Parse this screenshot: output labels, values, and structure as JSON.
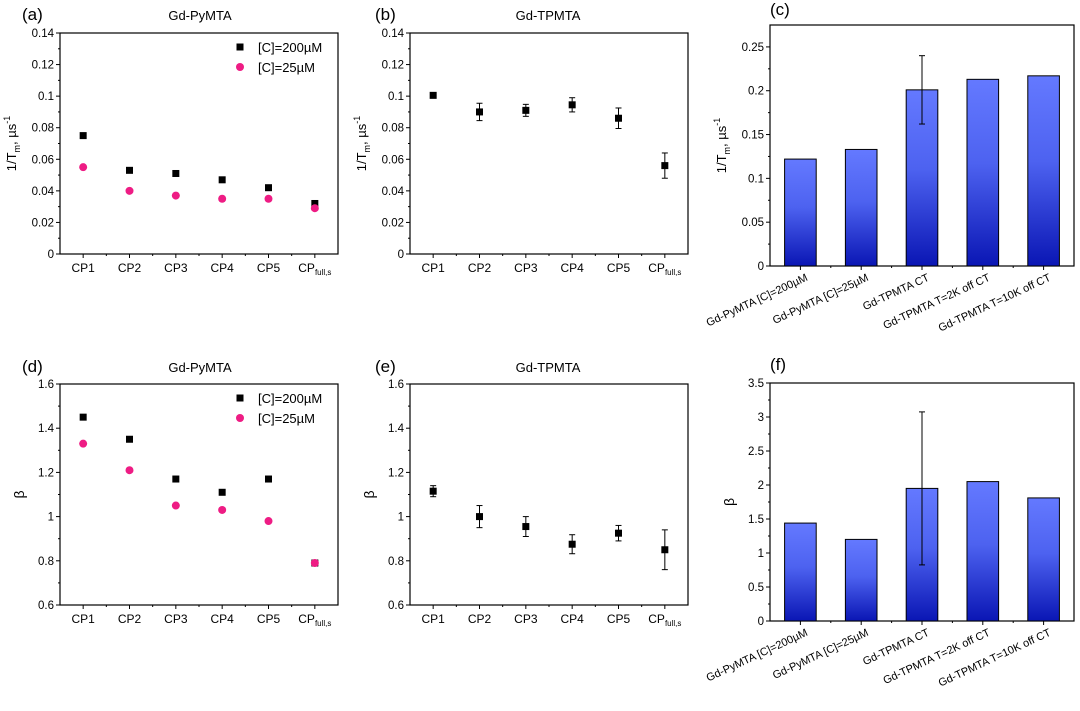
{
  "figure": {
    "colors": {
      "series_200uM": "#000000",
      "series_25uM": "#ee1c84",
      "bar_top": "#6479ff",
      "bar_bottom": "#0a16b4",
      "axis": "#000000"
    }
  },
  "chart_data": [
    {
      "panel": "(a)",
      "type": "scatter",
      "title": "Gd-PyMTA",
      "xlabel": "",
      "ylabel": "1/T_m, µs^-1",
      "ylabel_parts": {
        "main": "1/T",
        "sub": "m",
        "unit": ", µs",
        "sup": "-1"
      },
      "categories": [
        "CP1",
        "CP2",
        "CP3",
        "CP4",
        "CP5",
        "CPfull,s"
      ],
      "category_labels": [
        {
          "main": "CP1",
          "sub": ""
        },
        {
          "main": "CP2",
          "sub": ""
        },
        {
          "main": "CP3",
          "sub": ""
        },
        {
          "main": "CP4",
          "sub": ""
        },
        {
          "main": "CP5",
          "sub": ""
        },
        {
          "main": "CP",
          "sub": "full,s"
        }
      ],
      "ylim": [
        0,
        0.14
      ],
      "yticks": [
        0,
        0.02,
        0.04,
        0.06,
        0.08,
        0.1,
        0.12,
        0.14
      ],
      "ytick_labels": [
        "0",
        "0.02",
        "0.04",
        "0.06",
        "0.08",
        "0.1",
        "0.12",
        "0.14"
      ],
      "legend": "top-right",
      "series": [
        {
          "name": "[C]=200µM",
          "marker": "square",
          "color": "#000000",
          "values": [
            0.075,
            0.053,
            0.051,
            0.047,
            0.042,
            0.032
          ]
        },
        {
          "name": "[C]=25µM",
          "marker": "circle",
          "color": "#ee1c84",
          "values": [
            0.055,
            0.04,
            0.037,
            0.035,
            0.035,
            0.029
          ]
        }
      ]
    },
    {
      "panel": "(b)",
      "type": "scatter",
      "title": "Gd-TPMTA",
      "xlabel": "",
      "ylabel": "1/T_m, µs^-1",
      "ylabel_parts": {
        "main": "1/T",
        "sub": "m",
        "unit": ", µs",
        "sup": "-1"
      },
      "categories": [
        "CP1",
        "CP2",
        "CP3",
        "CP4",
        "CP5",
        "CPfull,s"
      ],
      "category_labels": [
        {
          "main": "CP1",
          "sub": ""
        },
        {
          "main": "CP2",
          "sub": ""
        },
        {
          "main": "CP3",
          "sub": ""
        },
        {
          "main": "CP4",
          "sub": ""
        },
        {
          "main": "CP5",
          "sub": ""
        },
        {
          "main": "CP",
          "sub": "full,s"
        }
      ],
      "ylim": [
        0,
        0.14
      ],
      "yticks": [
        0,
        0.02,
        0.04,
        0.06,
        0.08,
        0.1,
        0.12,
        0.14
      ],
      "ytick_labels": [
        "0",
        "0.02",
        "0.04",
        "0.06",
        "0.08",
        "0.1",
        "0.12",
        "0.14"
      ],
      "legend": "none",
      "series": [
        {
          "name": "Gd-TPMTA",
          "marker": "square",
          "color": "#000000",
          "values": [
            0.1005,
            0.09,
            0.091,
            0.0945,
            0.086,
            0.056
          ],
          "errors": [
            0.001,
            0.0055,
            0.0038,
            0.0045,
            0.0065,
            0.008
          ]
        }
      ]
    },
    {
      "panel": "(c)",
      "type": "bar",
      "title": "",
      "xlabel": "",
      "ylabel": "1/T_m, µs^-1",
      "ylabel_parts": {
        "main": "1/T",
        "sub": "m",
        "unit": ", µs",
        "sup": "-1"
      },
      "categories": [
        "Gd-PyMTA [C]=200µM",
        "Gd-PyMTA [C]=25µM",
        "Gd-TPMTA CT",
        "Gd-TPMTA T=2K off CT",
        "Gd-TPMTA T=10K off CT"
      ],
      "ylim": [
        0,
        0.275
      ],
      "yticks": [
        0,
        0.05,
        0.1,
        0.15,
        0.2,
        0.25
      ],
      "ytick_labels": [
        "0",
        "0.05",
        "0.1",
        "0.15",
        "0.2",
        "0.25"
      ],
      "legend": "none",
      "values": [
        0.122,
        0.133,
        0.201,
        0.213,
        0.217
      ],
      "errors": [
        null,
        null,
        0.039,
        null,
        null
      ]
    },
    {
      "panel": "(d)",
      "type": "scatter",
      "title": "Gd-PyMTA",
      "xlabel": "",
      "ylabel": "β",
      "categories": [
        "CP1",
        "CP2",
        "CP3",
        "CP4",
        "CP5",
        "CPfull,s"
      ],
      "category_labels": [
        {
          "main": "CP1",
          "sub": ""
        },
        {
          "main": "CP2",
          "sub": ""
        },
        {
          "main": "CP3",
          "sub": ""
        },
        {
          "main": "CP4",
          "sub": ""
        },
        {
          "main": "CP5",
          "sub": ""
        },
        {
          "main": "CP",
          "sub": "full,s"
        }
      ],
      "ylim": [
        0.6,
        1.6
      ],
      "yticks": [
        0.6,
        0.8,
        1.0,
        1.2,
        1.4,
        1.6
      ],
      "ytick_labels": [
        "0.6",
        "0.8",
        "1",
        "1.2",
        "1.4",
        "1.6"
      ],
      "legend": "top-right",
      "series": [
        {
          "name": "[C]=200µM",
          "marker": "square",
          "color": "#000000",
          "values": [
            1.45,
            1.35,
            1.17,
            1.11,
            1.17,
            0.79
          ]
        },
        {
          "name": "[C]=25µM",
          "marker": "circle",
          "color": "#ee1c84",
          "values": [
            1.33,
            1.21,
            1.05,
            1.03,
            0.98,
            0.79
          ]
        }
      ]
    },
    {
      "panel": "(e)",
      "type": "scatter",
      "title": "Gd-TPMTA",
      "xlabel": "",
      "ylabel": "β",
      "categories": [
        "CP1",
        "CP2",
        "CP3",
        "CP4",
        "CP5",
        "CPfull,s"
      ],
      "category_labels": [
        {
          "main": "CP1",
          "sub": ""
        },
        {
          "main": "CP2",
          "sub": ""
        },
        {
          "main": "CP3",
          "sub": ""
        },
        {
          "main": "CP4",
          "sub": ""
        },
        {
          "main": "CP5",
          "sub": ""
        },
        {
          "main": "CP",
          "sub": "full,s"
        }
      ],
      "ylim": [
        0.6,
        1.6
      ],
      "yticks": [
        0.6,
        0.8,
        1.0,
        1.2,
        1.4,
        1.6
      ],
      "ytick_labels": [
        "0.6",
        "0.8",
        "1",
        "1.2",
        "1.4",
        "1.6"
      ],
      "legend": "none",
      "series": [
        {
          "name": "Gd-TPMTA",
          "marker": "square",
          "color": "#000000",
          "values": [
            1.115,
            1.0,
            0.955,
            0.875,
            0.925,
            0.85
          ],
          "errors": [
            0.025,
            0.05,
            0.045,
            0.043,
            0.035,
            0.09
          ]
        }
      ]
    },
    {
      "panel": "(f)",
      "type": "bar",
      "title": "",
      "xlabel": "",
      "ylabel": "β",
      "categories": [
        "Gd-PyMTA [C]=200µM",
        "Gd-PyMTA [C]=25µM",
        "Gd-TPMTA CT",
        "Gd-TPMTA T=2K off CT",
        "Gd-TPMTA T=10K off CT"
      ],
      "ylim": [
        0,
        3.5
      ],
      "yticks": [
        0,
        0.5,
        1,
        1.5,
        2,
        2.5,
        3,
        3.5
      ],
      "ytick_labels": [
        "0",
        "0.5",
        "1",
        "1.5",
        "2",
        "2.5",
        "3",
        "3.5"
      ],
      "legend": "none",
      "values": [
        1.44,
        1.2,
        1.95,
        2.05,
        1.81
      ],
      "errors": [
        null,
        null,
        1.125,
        null,
        null
      ]
    }
  ]
}
